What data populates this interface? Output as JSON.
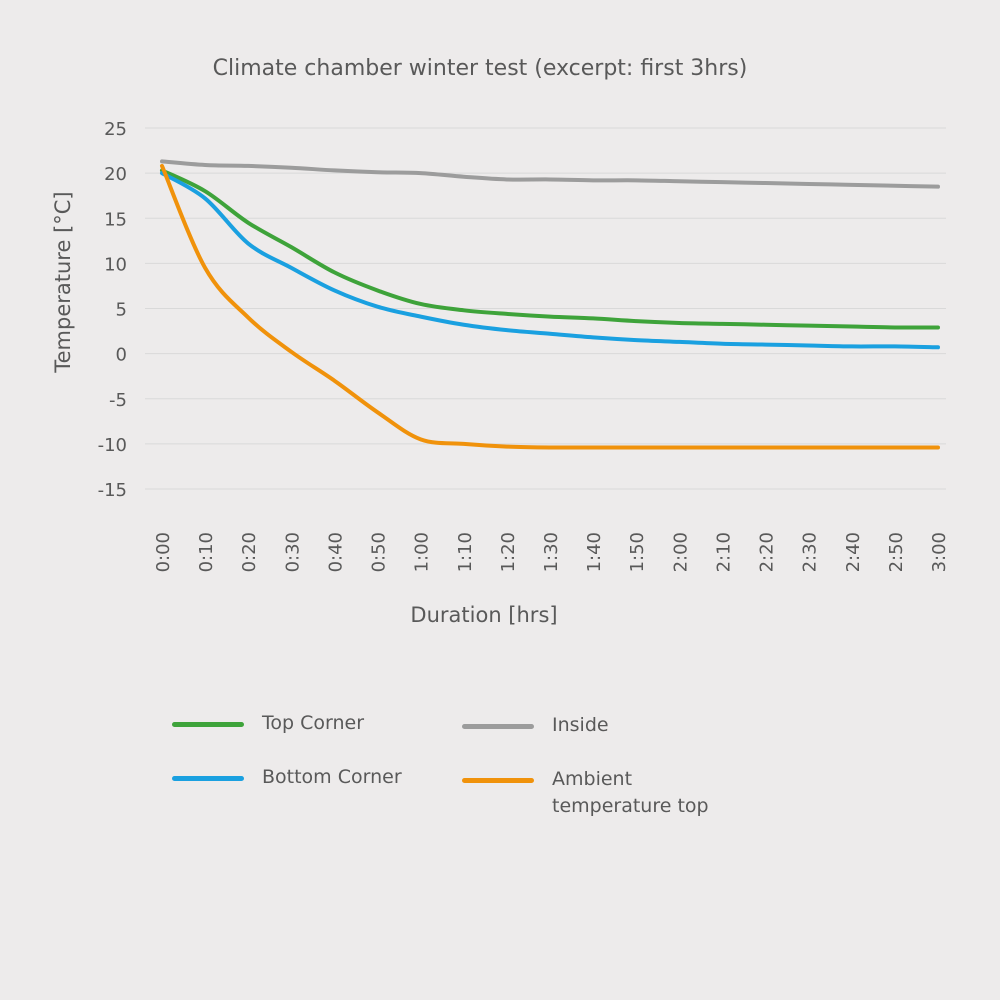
{
  "chart_data": {
    "type": "line",
    "title": "Climate chamber winter test (excerpt: first 3hrs)",
    "xlabel": "Duration [hrs]",
    "ylabel": "Temperature [°C]",
    "ylim": [
      -15,
      25
    ],
    "yticks": [
      25,
      20,
      15,
      10,
      5,
      0,
      -5,
      -10,
      -15
    ],
    "grid": true,
    "legend_position": "bottom",
    "categories": [
      "0:00",
      "0:10",
      "0:20",
      "0:30",
      "0:40",
      "0:50",
      "1:00",
      "1:10",
      "1:20",
      "1:30",
      "1:40",
      "1:50",
      "2:00",
      "2:10",
      "2:20",
      "2:30",
      "2:40",
      "2:50",
      "3:00"
    ],
    "series": [
      {
        "name": "Top Corner",
        "color": "#3ea33a",
        "values": [
          20.3,
          18.0,
          14.5,
          11.8,
          9.0,
          7.0,
          5.5,
          4.8,
          4.4,
          4.1,
          3.9,
          3.6,
          3.4,
          3.3,
          3.2,
          3.1,
          3.0,
          2.9,
          2.9
        ]
      },
      {
        "name": "Bottom Corner",
        "color": "#1aa0e0",
        "values": [
          20.0,
          17.2,
          12.2,
          9.5,
          7.0,
          5.2,
          4.1,
          3.2,
          2.6,
          2.2,
          1.8,
          1.5,
          1.3,
          1.1,
          1.0,
          0.9,
          0.8,
          0.8,
          0.7
        ]
      },
      {
        "name": "Inside",
        "color": "#9c9c9c",
        "values": [
          21.3,
          20.9,
          20.8,
          20.6,
          20.3,
          20.1,
          20.0,
          19.6,
          19.3,
          19.3,
          19.2,
          19.2,
          19.1,
          19.0,
          18.9,
          18.8,
          18.7,
          18.6,
          18.5
        ]
      },
      {
        "name": "Ambient\ntemperature top",
        "label_line1": "Ambient",
        "label_line2": "temperature top",
        "color": "#f0920b",
        "values": [
          20.8,
          9.5,
          4.0,
          0.2,
          -3.0,
          -6.5,
          -9.5,
          -10.0,
          -10.3,
          -10.4,
          -10.4,
          -10.4,
          -10.4,
          -10.4,
          -10.4,
          -10.4,
          -10.4,
          -10.4,
          -10.4
        ]
      }
    ]
  },
  "legend": {
    "top_corner": "Top Corner",
    "bottom_corner": "Bottom Corner",
    "inside": "Inside",
    "ambient_line1": "Ambient",
    "ambient_line2": "temperature top"
  }
}
